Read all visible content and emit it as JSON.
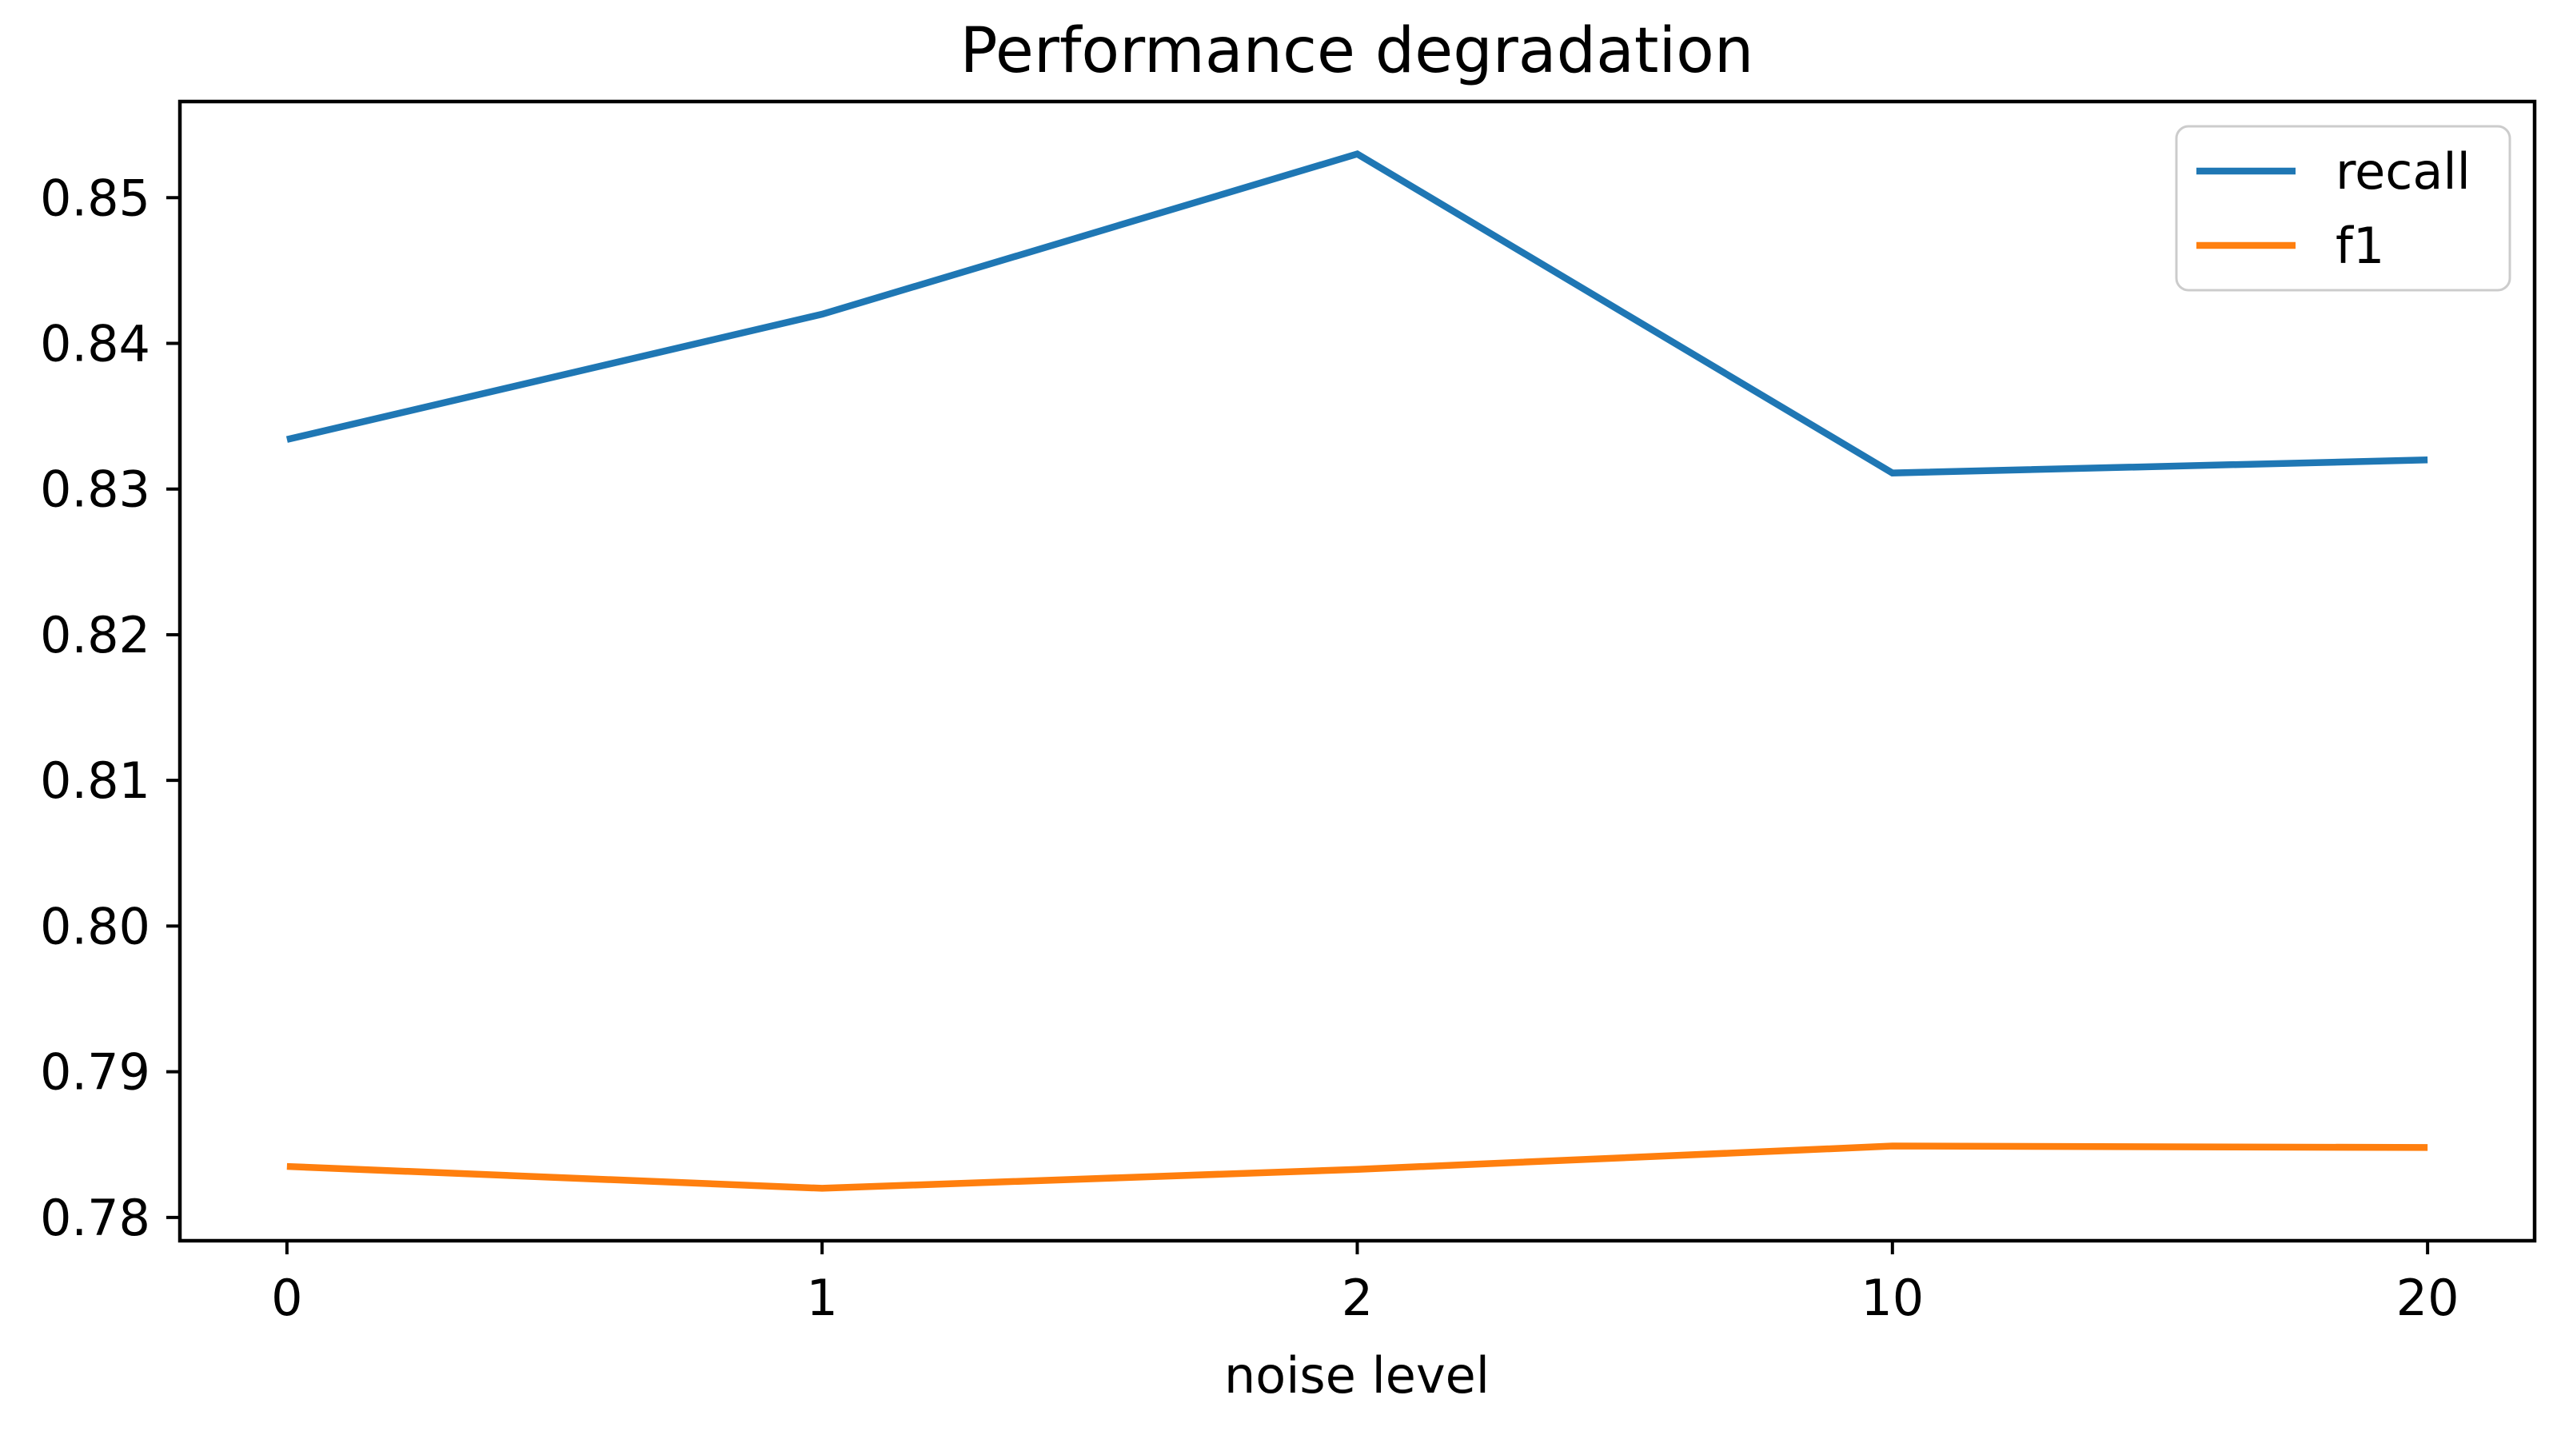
{
  "chart_data": {
    "type": "line",
    "title": "Performance degradation",
    "xlabel": "noise level",
    "ylabel": "",
    "x_axis_type": "categorical",
    "categories": [
      "0",
      "1",
      "2",
      "10",
      "20"
    ],
    "series": [
      {
        "name": "recall",
        "color": "#1f77b4",
        "values": [
          0.8334,
          0.842,
          0.853,
          0.8311,
          0.832
        ]
      },
      {
        "name": "f1",
        "color": "#ff7f0e",
        "values": [
          0.7835,
          0.782,
          0.7833,
          0.7849,
          0.7848
        ]
      }
    ],
    "ylim": [
      0.7784,
      0.8566
    ],
    "yticks": [
      0.78,
      0.79,
      0.8,
      0.81,
      0.82,
      0.83,
      0.84,
      0.85
    ],
    "ytick_labels": [
      "0.78",
      "0.79",
      "0.80",
      "0.81",
      "0.82",
      "0.83",
      "0.84",
      "0.85"
    ],
    "grid": false,
    "legend": {
      "position": "upper right",
      "labels": [
        "recall",
        "f1"
      ]
    },
    "colors": {
      "axis": "#000000",
      "legend_border": "#cccccc",
      "background": "#ffffff"
    }
  }
}
